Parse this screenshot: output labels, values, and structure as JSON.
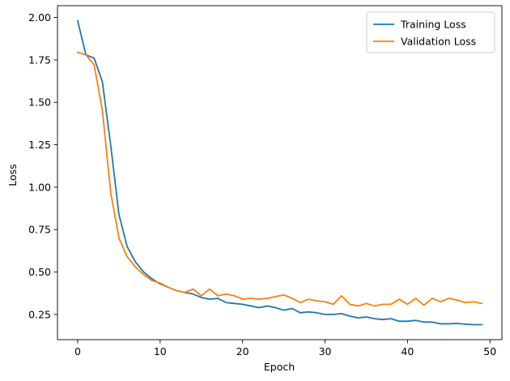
{
  "chart_data": {
    "type": "line",
    "xlabel": "Epoch",
    "ylabel": "Loss",
    "xlim": [
      -2.45,
      51.45
    ],
    "ylim": [
      0.1015,
      2.0695
    ],
    "xticks": [
      0,
      10,
      20,
      30,
      40,
      50
    ],
    "xtick_labels": [
      "0",
      "10",
      "20",
      "30",
      "40",
      "50"
    ],
    "yticks": [
      0.25,
      0.5,
      0.75,
      1.0,
      1.25,
      1.5,
      1.75,
      2.0
    ],
    "ytick_labels": [
      "0.25",
      "0.50",
      "0.75",
      "1.00",
      "1.25",
      "1.50",
      "1.75",
      "2.00"
    ],
    "grid": false,
    "legend_position": "upper right",
    "x": [
      0,
      1,
      2,
      3,
      4,
      5,
      6,
      7,
      8,
      9,
      10,
      11,
      12,
      13,
      14,
      15,
      16,
      17,
      18,
      19,
      20,
      21,
      22,
      23,
      24,
      25,
      26,
      27,
      28,
      29,
      30,
      31,
      32,
      33,
      34,
      35,
      36,
      37,
      38,
      39,
      40,
      41,
      42,
      43,
      44,
      45,
      46,
      47,
      48,
      49
    ],
    "series": [
      {
        "name": "Training Loss",
        "color": "#1f77b4",
        "values": [
          1.98,
          1.78,
          1.76,
          1.62,
          1.25,
          0.84,
          0.65,
          0.56,
          0.5,
          0.46,
          0.43,
          0.41,
          0.39,
          0.38,
          0.37,
          0.35,
          0.34,
          0.345,
          0.32,
          0.315,
          0.31,
          0.3,
          0.29,
          0.3,
          0.29,
          0.275,
          0.285,
          0.26,
          0.265,
          0.26,
          0.25,
          0.25,
          0.255,
          0.24,
          0.23,
          0.235,
          0.225,
          0.22,
          0.225,
          0.21,
          0.21,
          0.215,
          0.205,
          0.205,
          0.195,
          0.195,
          0.197,
          0.193,
          0.19,
          0.19
        ]
      },
      {
        "name": "Validation Loss",
        "color": "#ff7f0e",
        "values": [
          1.795,
          1.78,
          1.72,
          1.45,
          0.97,
          0.7,
          0.59,
          0.53,
          0.485,
          0.45,
          0.435,
          0.41,
          0.39,
          0.38,
          0.4,
          0.36,
          0.4,
          0.36,
          0.37,
          0.36,
          0.34,
          0.345,
          0.34,
          0.345,
          0.355,
          0.365,
          0.345,
          0.32,
          0.34,
          0.33,
          0.325,
          0.31,
          0.36,
          0.31,
          0.3,
          0.315,
          0.3,
          0.31,
          0.31,
          0.34,
          0.31,
          0.345,
          0.305,
          0.345,
          0.325,
          0.345,
          0.335,
          0.32,
          0.325,
          0.315
        ]
      }
    ]
  }
}
